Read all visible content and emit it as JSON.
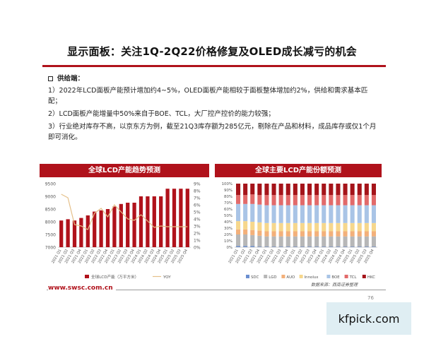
{
  "title": "显示面板：关注1Q-2Q22价格修复及OLED成长减亏的机会",
  "section": {
    "heading": "供给端：",
    "paragraphs": [
      "1）2022年LCD面板产能预计增加约4~5%，OLED面板产能相较于面板整体增加约2%，供给和需求基本匹配；",
      "2）LCD面板产能增量中50%来自于BOE、TCL，大厂控产控价的能力较强；",
      "3）行业绝对库存不高，以京东方为例，截至21Q3库存额为285亿元，剔除在产品和材料，成品库存或仅1个月即可消化。"
    ]
  },
  "charts": {
    "left_title": "全球LCD产能趋势预测",
    "right_title": "全球主要LCD产能份额预测"
  },
  "footer": {
    "url": "www.swsc.com.cn",
    "source": "数据来源：西南证券整理",
    "page": "76"
  },
  "watermark": "kfpick.com",
  "colors": {
    "brand_red": "#b0121b",
    "yoy_line": "#e5c08a"
  },
  "chart_data": [
    {
      "type": "bar",
      "categories": [
        "2021 Q1",
        "2021 Q2",
        "2021 Q3",
        "2021 Q4",
        "2022 Q1",
        "2022 Q2",
        "2022 Q3",
        "2022 Q4",
        "2023 Q1",
        "2023 Q2",
        "2023 Q3",
        "2023 Q4",
        "2024 Q1",
        "2024 Q2",
        "2024 Q3",
        "2024 Q4",
        "2025 Q1",
        "2025 Q2",
        "2025 Q3",
        "2025 Q4"
      ],
      "series": [
        {
          "name": "全球LCD产能（万平方米）",
          "type": "bar",
          "axis": "left",
          "values": [
            8050,
            8100,
            8050,
            8150,
            8250,
            8400,
            8450,
            8500,
            8600,
            8700,
            8750,
            8750,
            9000,
            9000,
            9000,
            9000,
            9300,
            9300,
            9300,
            9300
          ]
        },
        {
          "name": "YOY",
          "type": "line",
          "axis": "right",
          "values": [
            7.5,
            7.0,
            3.2,
            3.0,
            2.5,
            4.8,
            5.5,
            4.3,
            6.0,
            5.0,
            4.0,
            3.8,
            4.6,
            3.7,
            2.8,
            3.0,
            2.9,
            2.9,
            2.9,
            2.9
          ]
        }
      ],
      "ylim": [
        7000,
        9500
      ],
      "yticks": [
        "9500",
        "9000",
        "8500",
        "8000",
        "7500",
        "7000"
      ],
      "y2lim": [
        0,
        9
      ],
      "y2ticks": [
        "9%",
        "8%",
        "7%",
        "6%",
        "5%",
        "4%",
        "3%",
        "2%",
        "1%",
        "0%"
      ],
      "legend_position": "bottom"
    },
    {
      "type": "bar",
      "stacked": true,
      "categories": [
        "2021 Q1",
        "2021 Q2",
        "2021 Q3",
        "2021 Q4",
        "2022 Q1",
        "2022 Q2",
        "2022 Q3",
        "2022 Q4",
        "2023 Q1",
        "2023 Q2",
        "2023 Q3",
        "2023 Q4",
        "2024 Q1",
        "2024 Q2",
        "2024 Q3",
        "2024 Q4",
        "2025 Q1",
        "2025 Q2",
        "2025 Q3",
        "2025 Q4"
      ],
      "series": [
        {
          "name": "SDC",
          "color": "#6b8fd0",
          "values": [
            2,
            2,
            2,
            1,
            1,
            1,
            1,
            1,
            1,
            1,
            1,
            1,
            1,
            1,
            1,
            1,
            1,
            1,
            1,
            1
          ]
        },
        {
          "name": "LGD",
          "color": "#b7b7b7",
          "values": [
            18,
            18,
            17,
            17,
            16,
            16,
            16,
            16,
            16,
            16,
            16,
            16,
            16,
            16,
            16,
            16,
            16,
            16,
            16,
            16
          ]
        },
        {
          "name": "AUO",
          "color": "#f3b07a",
          "values": [
            8,
            8,
            8,
            8,
            8,
            8,
            8,
            8,
            8,
            8,
            8,
            8,
            8,
            8,
            8,
            8,
            8,
            8,
            8,
            8
          ]
        },
        {
          "name": "Innolux",
          "color": "#f6d78c",
          "values": [
            13,
            13,
            13,
            13,
            13,
            13,
            13,
            13,
            13,
            13,
            13,
            13,
            13,
            13,
            13,
            13,
            13,
            13,
            13,
            13
          ]
        },
        {
          "name": "BOE",
          "color": "#a9c4e6",
          "values": [
            27,
            27,
            28,
            28,
            28,
            28,
            28,
            28,
            28,
            28,
            28,
            28,
            28,
            28,
            28,
            28,
            28,
            28,
            28,
            28
          ]
        },
        {
          "name": "TCL",
          "color": "#e26a6a",
          "values": [
            14,
            14,
            15,
            15,
            16,
            16,
            16,
            16,
            16,
            16,
            16,
            16,
            16,
            16,
            16,
            16,
            16,
            16,
            16,
            16
          ]
        },
        {
          "name": "HKC",
          "color": "#a5141a",
          "values": [
            18,
            18,
            17,
            18,
            18,
            18,
            18,
            18,
            18,
            18,
            18,
            18,
            18,
            18,
            18,
            18,
            18,
            18,
            18,
            18
          ]
        }
      ],
      "ylim": [
        0,
        100
      ],
      "yticks": [
        "100%",
        "90%",
        "80%",
        "70%",
        "60%",
        "50%",
        "40%",
        "30%",
        "20%",
        "10%",
        "0%"
      ],
      "legend_position": "bottom"
    }
  ]
}
